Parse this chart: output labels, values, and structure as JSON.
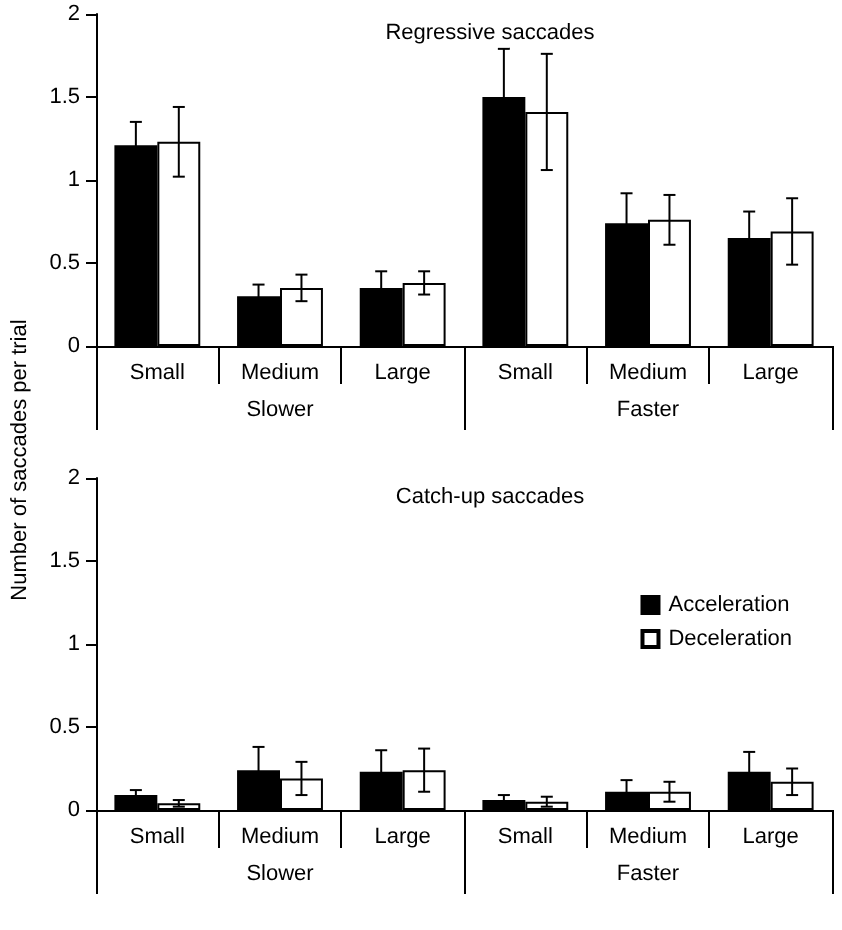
{
  "chart_data": [
    {
      "type": "bar",
      "title": "Regressive saccades",
      "ylabel": "Number of saccades per trial",
      "categories": [
        "Small",
        "Medium",
        "Large",
        "Small",
        "Medium",
        "Large"
      ],
      "annotations": [
        "Slower",
        "Faster"
      ],
      "series": [
        {
          "color": "#000000",
          "values": [
            1.21,
            0.3,
            0.35,
            1.5,
            0.74,
            0.65
          ],
          "errors": [
            0.14,
            0.07,
            0.1,
            0.29,
            0.18,
            0.16
          ]
        },
        {
          "color": "#ffffff",
          "values": [
            1.23,
            0.35,
            0.38,
            1.41,
            0.76,
            0.69
          ],
          "errors": [
            0.21,
            0.08,
            0.07,
            0.35,
            0.15,
            0.2
          ]
        }
      ],
      "ylim": [
        0,
        2
      ],
      "yticks": [
        0,
        0.5,
        1,
        1.5,
        2
      ],
      "grid": false,
      "legend": false
    },
    {
      "type": "bar",
      "title": "Catch-up saccades",
      "categories": [
        "Small",
        "Medium",
        "Large",
        "Small",
        "Medium",
        "Large"
      ],
      "annotations": [
        "Slower",
        "Faster"
      ],
      "series": [
        {
          "name": "Acceleration",
          "color": "#000000",
          "values": [
            0.09,
            0.24,
            0.23,
            0.06,
            0.11,
            0.23
          ],
          "errors": [
            0.03,
            0.14,
            0.13,
            0.03,
            0.07,
            0.12
          ]
        },
        {
          "name": "Deceleration",
          "color": "#ffffff",
          "values": [
            0.04,
            0.19,
            0.24,
            0.05,
            0.11,
            0.17
          ],
          "errors": [
            0.02,
            0.1,
            0.13,
            0.03,
            0.06,
            0.08
          ]
        }
      ],
      "ylim": [
        0,
        2
      ],
      "yticks": [
        0,
        0.5,
        1,
        1.5,
        2
      ],
      "grid": false,
      "legend": "right"
    }
  ]
}
